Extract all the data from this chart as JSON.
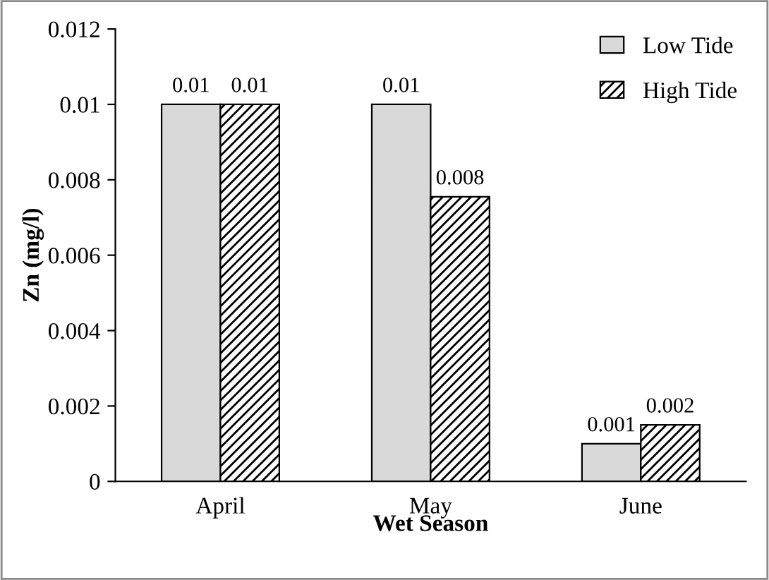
{
  "chart_data": {
    "type": "bar",
    "categories": [
      "April",
      "May",
      "June"
    ],
    "xlabel": "Wet Season",
    "ylabel": "Zn (mg/l)",
    "series": [
      {
        "name": "Low Tide",
        "color": "#d9d9d9",
        "values": [
          0.01,
          0.01,
          0.001
        ],
        "value_labels": [
          "0.01",
          "0.01",
          "0.001"
        ]
      },
      {
        "name": "High Tide",
        "color": "#000000",
        "values": [
          0.01,
          0.00755,
          0.0015
        ],
        "value_labels": [
          "0.01",
          "0.008",
          "0.002"
        ]
      }
    ],
    "ylim": [
      0,
      0.012
    ],
    "yticks": [
      0,
      0.002,
      0.004,
      0.006,
      0.008,
      0.01,
      0.012
    ],
    "legend": "top right",
    "grid": false
  }
}
